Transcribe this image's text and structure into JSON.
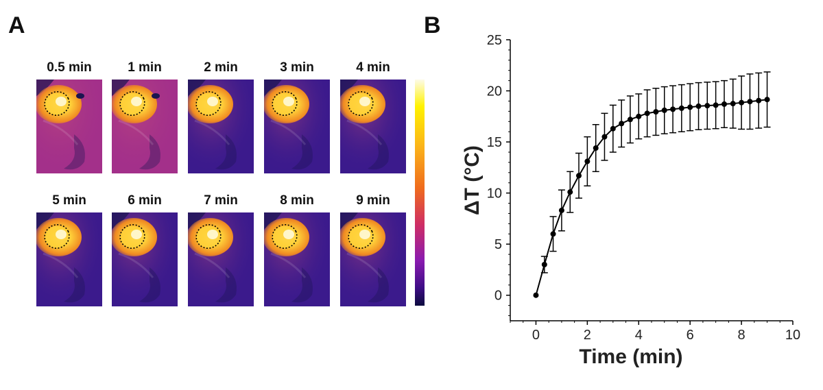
{
  "panel_a": {
    "letter": "A",
    "frames": [
      {
        "label": "0.5 min",
        "phase": "early"
      },
      {
        "label": "1 min",
        "phase": "early"
      },
      {
        "label": "2 min",
        "phase": "late"
      },
      {
        "label": "3 min",
        "phase": "late"
      },
      {
        "label": "4 min",
        "phase": "late"
      },
      {
        "label": "5 min",
        "phase": "late"
      },
      {
        "label": "6 min",
        "phase": "late"
      },
      {
        "label": "7 min",
        "phase": "late"
      },
      {
        "label": "8 min",
        "phase": "late"
      },
      {
        "label": "9 min",
        "phase": "late"
      }
    ],
    "colors": {
      "background_early": "#a3308a",
      "background_late": "#3b1a8c",
      "hotspot_core": "#fffbe0",
      "hotspot_mid": "#ffd23a",
      "hotspot_edge": "#f08a22",
      "dark_region": "#1b1550"
    }
  },
  "panel_b": {
    "letter": "B"
  },
  "chart_data": {
    "type": "line",
    "title": "",
    "xlabel": "Time (min)",
    "ylabel": "ΔT (°C)",
    "xlim": [
      -1,
      10
    ],
    "ylim": [
      -2.5,
      25
    ],
    "xticks": [
      0,
      2,
      4,
      6,
      8,
      10
    ],
    "yticks": [
      0,
      5,
      10,
      15,
      20,
      25
    ],
    "grid": false,
    "series": [
      {
        "name": "ΔT",
        "color": "#000000",
        "x": [
          0,
          0.33,
          0.67,
          1.0,
          1.33,
          1.67,
          2.0,
          2.33,
          2.67,
          3.0,
          3.33,
          3.67,
          4.0,
          4.33,
          4.67,
          5.0,
          5.33,
          5.67,
          6.0,
          6.33,
          6.67,
          7.0,
          7.33,
          7.67,
          8.0,
          8.33,
          8.67,
          9.0
        ],
        "y": [
          0,
          3.0,
          6.0,
          8.3,
          10.1,
          11.7,
          13.1,
          14.4,
          15.5,
          16.3,
          16.8,
          17.2,
          17.5,
          17.8,
          17.95,
          18.1,
          18.2,
          18.3,
          18.4,
          18.5,
          18.55,
          18.6,
          18.7,
          18.75,
          18.85,
          18.95,
          19.05,
          19.15
        ],
        "error": [
          0,
          0.8,
          1.7,
          2.0,
          2.0,
          2.2,
          2.4,
          2.3,
          2.3,
          2.3,
          2.3,
          2.3,
          2.2,
          2.3,
          2.3,
          2.3,
          2.3,
          2.3,
          2.3,
          2.3,
          2.3,
          2.3,
          2.3,
          2.4,
          2.6,
          2.7,
          2.7,
          2.7
        ]
      }
    ]
  }
}
